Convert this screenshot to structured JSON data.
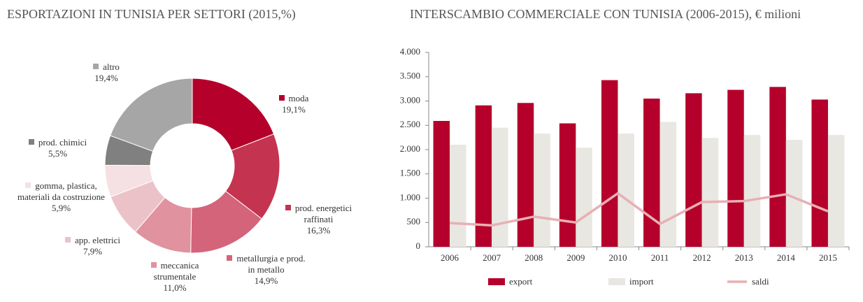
{
  "chart_data": [
    {
      "type": "donut",
      "title": "ESPORTAZIONI IN TUNISIA PER SETTORI (2015,%)",
      "categories": [
        "moda",
        "prod. energetici raffinati",
        "metallurgia e prod. in metallo",
        "meccanica strumentale",
        "app. elettrici",
        "gomma, plastica, materiali da costruzione",
        "prod. chimici",
        "altro"
      ],
      "values": [
        19.1,
        16.3,
        14.9,
        11.0,
        7.9,
        5.9,
        5.5,
        19.4
      ],
      "value_labels": [
        "19,1%",
        "16,3%",
        "14,9%",
        "11,0%",
        "7,9%",
        "5,9%",
        "5,5%",
        "19,4%"
      ],
      "colors": [
        "#b5002b",
        "#c4334f",
        "#d4647a",
        "#e0929f",
        "#ecc2c9",
        "#f5e0e3",
        "#808080",
        "#a6a6a6"
      ]
    },
    {
      "type": "bar-line",
      "title": "INTERSCAMBIO COMMERCIALE CON TUNISIA (2006-2015), € milioni",
      "categories": [
        "2006",
        "2007",
        "2008",
        "2009",
        "2010",
        "2011",
        "2012",
        "2013",
        "2014",
        "2015"
      ],
      "series": [
        {
          "name": "export",
          "kind": "bar",
          "color": "#b5002b",
          "values": [
            2590,
            2910,
            2960,
            2540,
            3430,
            3050,
            3160,
            3230,
            3290,
            3030
          ]
        },
        {
          "name": "import",
          "kind": "bar",
          "color": "#e9e7e2",
          "values": [
            2100,
            2450,
            2330,
            2040,
            2330,
            2570,
            2240,
            2300,
            2200,
            2300
          ]
        },
        {
          "name": "saldi",
          "kind": "line",
          "color": "#e8b0b3",
          "values": [
            490,
            440,
            620,
            500,
            1100,
            470,
            920,
            940,
            1080,
            730
          ]
        }
      ],
      "ylim": [
        0,
        4000
      ],
      "yticks": [
        0,
        500,
        {
          "value": 1000,
          "label": "1.000"
        },
        {
          "value": 1500,
          "label": "1.500"
        },
        {
          "value": 2000,
          "label": "2.000"
        },
        {
          "value": 2500,
          "label": "2.500"
        },
        {
          "value": 3000,
          "label": "3.000"
        },
        {
          "value": 3500,
          "label": "3.500"
        },
        {
          "value": 4000,
          "label": "4.000"
        }
      ],
      "grid": false,
      "legend": "bottom"
    }
  ]
}
